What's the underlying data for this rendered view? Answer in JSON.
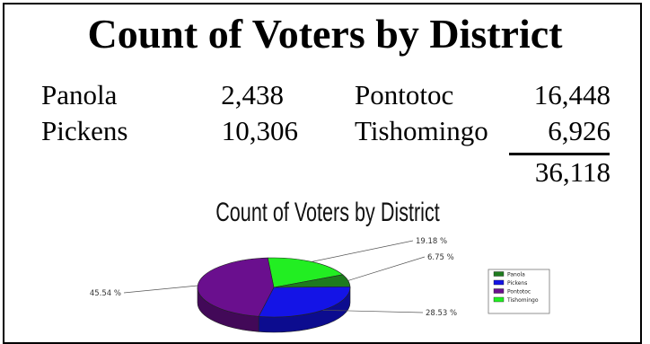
{
  "page": {
    "title": "Count of Voters by District"
  },
  "counts": [
    {
      "district": "Panola",
      "value": "2,438"
    },
    {
      "district": "Pickens",
      "value": "10,306"
    },
    {
      "district": "Pontotoc",
      "value": "16,448"
    },
    {
      "district": "Tishomingo",
      "value": "6,926"
    }
  ],
  "total": "36,118",
  "chart_data": {
    "type": "pie",
    "title": "Count of Voters by District",
    "labels": [
      "Panola",
      "Pickens",
      "Pontotoc",
      "Tishomingo"
    ],
    "values": [
      6.75,
      28.53,
      45.54,
      19.18
    ],
    "value_labels": [
      "6.75 %",
      "28.53 %",
      "45.54 %",
      "19.18 %"
    ],
    "colors": [
      "#1e7b1e",
      "#1414e6",
      "#6a0f8e",
      "#22ee22"
    ],
    "legend_position": "right",
    "three_d": true
  }
}
